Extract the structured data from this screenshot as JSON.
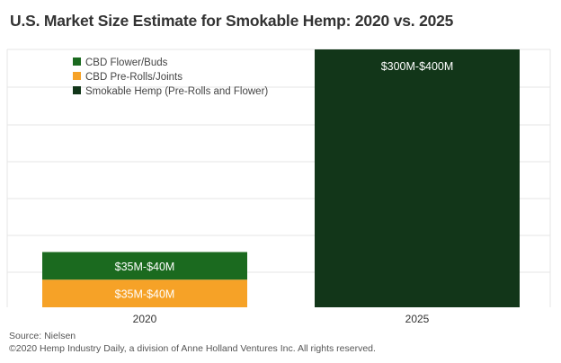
{
  "title": "U.S. Market Size Estimate for Smokable Hemp:  2020 vs. 2025",
  "source": "Source: Nielsen",
  "copyright": "©2020 Hemp Industry Daily, a division of Anne Holland Ventures Inc. All rights reserved.",
  "colors": {
    "cbd_flower": "#1b6a1f",
    "cbd_prerolls": "#f6a227",
    "smokable_hemp": "#123619",
    "grid": "#e6e6e6",
    "bar_text": "#ffffff",
    "axis_text": "#333333"
  },
  "chart_data": {
    "type": "bar",
    "stacked": true,
    "categories": [
      "2020",
      "2025"
    ],
    "series": [
      {
        "name": "CBD Flower/Buds",
        "color": "#1b6a1f",
        "values": [
          37.5,
          null
        ],
        "labels": [
          "$35M-$40M",
          ""
        ]
      },
      {
        "name": "CBD Pre-Rolls/Joints",
        "color": "#f6a227",
        "values": [
          37.5,
          null
        ],
        "labels": [
          "$35M-$40M",
          ""
        ]
      },
      {
        "name": "Smokable Hemp (Pre-Rolls and Flower)",
        "color": "#123619",
        "values": [
          null,
          350
        ],
        "labels": [
          "",
          "$300M-$400M"
        ]
      }
    ],
    "stack_order_bottom_to_top": [
      "CBD Pre-Rolls/Joints",
      "CBD Flower/Buds"
    ],
    "ylim": [
      0,
      350
    ],
    "y_axis_shown": false,
    "grid": true,
    "legend": "top-left",
    "xlabel": "",
    "ylabel": ""
  }
}
